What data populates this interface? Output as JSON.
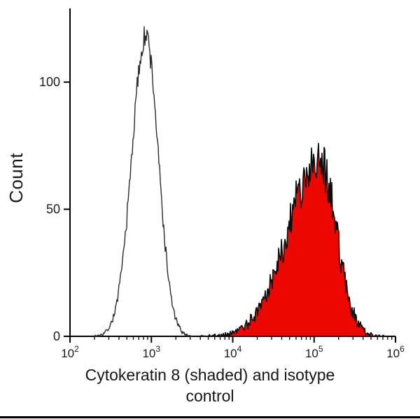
{
  "page": {
    "background": "#ffffff",
    "bottom_rule_color": "#000000"
  },
  "chart_data": {
    "type": "histogram",
    "subtype": "flow-cytometry-overlay",
    "title": "",
    "xlabel": "Cytokeratin 8 (shaded) and isotype control",
    "xlabel_lines": [
      "Cytokeratin 8 (shaded) and isotype",
      "control"
    ],
    "ylabel": "Count",
    "x_scale": "log",
    "x_range_log10": [
      2,
      6
    ],
    "x_tick_exponents": [
      2,
      3,
      4,
      5,
      6
    ],
    "x_tick_base": "10",
    "minor_ticks_per_decade": [
      2,
      3,
      4,
      5,
      6,
      7,
      8,
      9
    ],
    "y_ticks": [
      0,
      50,
      100
    ],
    "y_max": 129,
    "grid": false,
    "legend_position": "none",
    "axis_color": "#000000",
    "series": [
      {
        "name": "isotype control",
        "style": "open",
        "line_color": "#2b2b2b",
        "fill_color": "none",
        "peak_log10": 2.93,
        "sigma_left_log10": 0.17,
        "sigma_right_log10": 0.155,
        "peak_count": 118,
        "span_log10": [
          2.3,
          3.5
        ],
        "noise_amp": 5,
        "seed": 7,
        "envelope_points": [
          [
            250,
            0
          ],
          [
            320,
            2
          ],
          [
            400,
            6
          ],
          [
            500,
            18
          ],
          [
            600,
            40
          ],
          [
            700,
            70
          ],
          [
            800,
            100
          ],
          [
            900,
            120
          ],
          [
            1000,
            108
          ],
          [
            1150,
            70
          ],
          [
            1300,
            40
          ],
          [
            1500,
            15
          ],
          [
            1800,
            4
          ],
          [
            2500,
            0
          ]
        ]
      },
      {
        "name": "Cytokeratin 8",
        "style": "shaded",
        "line_color": "#0d0d0d",
        "fill_color": "#ec0800",
        "peak_log10": 5.06,
        "sigma_left_log10": 0.38,
        "sigma_right_log10": 0.21,
        "peak_count": 70,
        "span_log10": [
          3.6,
          5.88
        ],
        "noise_amp": 9,
        "seed": 21,
        "envelope_points": [
          [
            4000,
            1
          ],
          [
            6000,
            3
          ],
          [
            10000,
            7
          ],
          [
            20000,
            18
          ],
          [
            40000,
            38
          ],
          [
            63000,
            52
          ],
          [
            80000,
            62
          ],
          [
            100000,
            68
          ],
          [
            115000,
            72
          ],
          [
            150000,
            60
          ],
          [
            200000,
            42
          ],
          [
            280000,
            18
          ],
          [
            400000,
            5
          ],
          [
            600000,
            1
          ]
        ]
      }
    ]
  }
}
